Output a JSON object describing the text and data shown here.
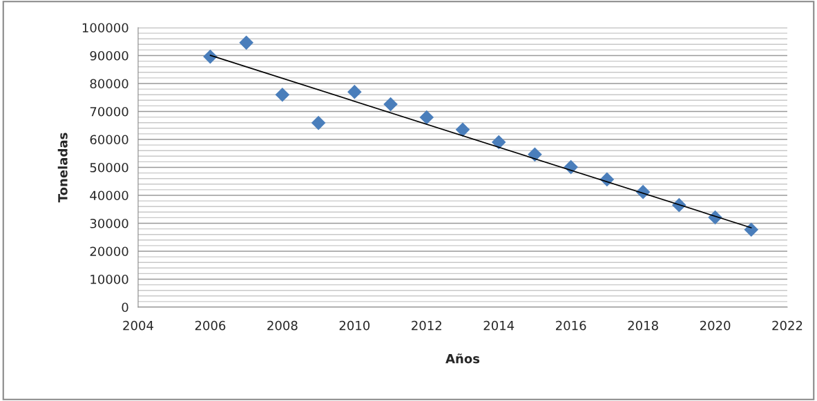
{
  "chart_data": {
    "type": "scatter",
    "xlabel": "Años",
    "ylabel": "Toneladas",
    "x": [
      2006,
      2007,
      2008,
      2009,
      2010,
      2011,
      2012,
      2013,
      2014,
      2015,
      2016,
      2017,
      2018,
      2019,
      2020,
      2021
    ],
    "series": [
      {
        "color": "#4a7ebb",
        "marker": "diamond",
        "values": [
          89600,
          94600,
          76000,
          65900,
          77000,
          72600,
          67900,
          63500,
          59000,
          54600,
          50100,
          45700,
          41200,
          36500,
          32100,
          27700
        ]
      },
      {
        "type": "line",
        "color": "#000000",
        "marker": "none",
        "x": [
          2006,
          2021
        ],
        "values": [
          90100,
          28400
        ]
      }
    ],
    "xlim": [
      2004,
      2022
    ],
    "xticks": [
      2004,
      2006,
      2008,
      2010,
      2012,
      2014,
      2016,
      2018,
      2020,
      2022
    ],
    "ylim": [
      0,
      100000
    ],
    "yticks": [
      0,
      10000,
      20000,
      30000,
      40000,
      50000,
      60000,
      70000,
      80000,
      90000,
      100000
    ],
    "grid": "y",
    "legend": false
  }
}
